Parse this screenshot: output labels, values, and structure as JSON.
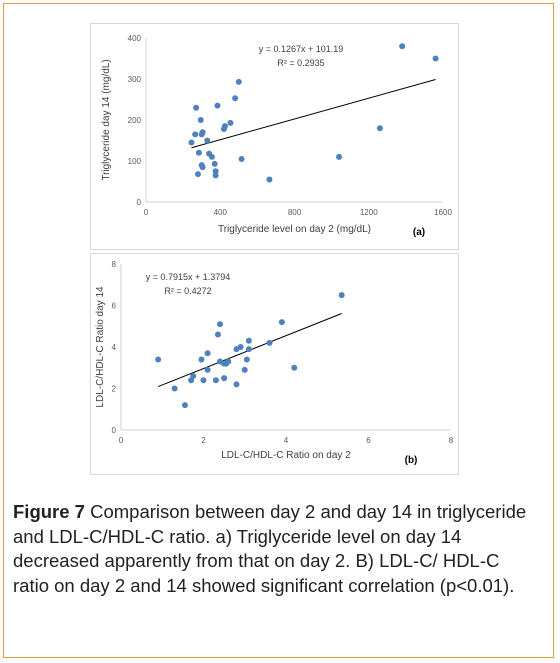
{
  "charts": {
    "a": {
      "chart_data": {
        "type": "scatter",
        "title": "",
        "xlabel": "Triglyceride level on day 2 (mg/dL)",
        "ylabel": "Triglyceride day 14 (mg/dL)",
        "xlim": [
          0,
          1600
        ],
        "ylim": [
          0,
          400
        ],
        "xticks": [
          0,
          400,
          800,
          1200,
          1600
        ],
        "yticks": [
          0,
          100,
          200,
          300,
          400
        ],
        "grid": false,
        "points": [
          [
            245,
            145
          ],
          [
            265,
            165
          ],
          [
            270,
            230
          ],
          [
            280,
            68
          ],
          [
            285,
            120
          ],
          [
            295,
            200
          ],
          [
            300,
            165
          ],
          [
            305,
            170
          ],
          [
            300,
            90
          ],
          [
            305,
            85
          ],
          [
            330,
            150
          ],
          [
            340,
            118
          ],
          [
            355,
            110
          ],
          [
            370,
            93
          ],
          [
            375,
            75
          ],
          [
            375,
            65
          ],
          [
            385,
            235
          ],
          [
            420,
            178
          ],
          [
            425,
            185
          ],
          [
            455,
            193
          ],
          [
            480,
            253
          ],
          [
            500,
            293
          ],
          [
            515,
            105
          ],
          [
            665,
            55
          ],
          [
            1040,
            110
          ],
          [
            1260,
            180
          ],
          [
            1380,
            380
          ],
          [
            1560,
            350
          ]
        ],
        "trendline": {
          "slope": 0.1267,
          "intercept": 101.19,
          "x_range": [
            245,
            1560
          ]
        },
        "equation": "y = 0.1267x + 101.19",
        "r2": "R² = 0.2935",
        "panel_label": "(a)",
        "marker_color": "#4f81bd"
      }
    },
    "b": {
      "chart_data": {
        "type": "scatter",
        "title": "",
        "xlabel": "LDL-C/HDL-C Ratio on day 2",
        "ylabel": "LDL-C/HDL-C Ratio day 14",
        "xlim": [
          0,
          8
        ],
        "ylim": [
          0,
          8
        ],
        "xticks": [
          0,
          2,
          4,
          6,
          8
        ],
        "yticks": [
          0,
          2,
          4,
          6,
          8
        ],
        "grid": false,
        "points": [
          [
            0.9,
            3.4
          ],
          [
            1.3,
            2.0
          ],
          [
            1.55,
            1.2
          ],
          [
            1.7,
            2.4
          ],
          [
            1.75,
            2.6
          ],
          [
            1.95,
            3.4
          ],
          [
            2.0,
            2.4
          ],
          [
            2.1,
            3.7
          ],
          [
            2.1,
            2.9
          ],
          [
            2.3,
            2.4
          ],
          [
            2.35,
            4.6
          ],
          [
            2.4,
            5.1
          ],
          [
            2.4,
            3.3
          ],
          [
            2.5,
            3.2
          ],
          [
            2.55,
            3.2
          ],
          [
            2.5,
            2.5
          ],
          [
            2.6,
            3.3
          ],
          [
            2.8,
            2.2
          ],
          [
            2.8,
            3.9
          ],
          [
            2.9,
            4.0
          ],
          [
            3.0,
            2.9
          ],
          [
            3.05,
            3.4
          ],
          [
            3.1,
            4.3
          ],
          [
            3.1,
            3.9
          ],
          [
            3.6,
            4.2
          ],
          [
            3.9,
            5.2
          ],
          [
            4.2,
            3.0
          ],
          [
            5.35,
            6.5
          ]
        ],
        "trendline": {
          "slope": 0.7915,
          "intercept": 1.3794,
          "x_range": [
            0.9,
            5.35
          ]
        },
        "equation": "y = 0.7915x + 1.3794",
        "r2": "R² = 0.4272",
        "panel_label": "(b)",
        "marker_color": "#4f81bd"
      }
    }
  },
  "caption": {
    "label": "Figure 7",
    "text": " Comparison between day 2 and day 14 in triglyceride and LDL-C/HDL-C ratio. a) Triglyceride level on day 14 decreased apparently from that on day 2. B) LDL-C/ HDL-C ratio on day 2 and 14 showed significant correlation (p<0.01)."
  }
}
